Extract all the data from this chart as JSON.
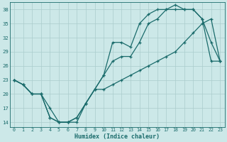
{
  "xlabel": "Humidex (Indice chaleur)",
  "ylabel": "",
  "bg_color": "#cce8e8",
  "grid_color": "#aacccc",
  "line_color": "#1a6b6b",
  "xlim": [
    -0.5,
    23.5
  ],
  "ylim": [
    13.0,
    39.5
  ],
  "xticks": [
    0,
    1,
    2,
    3,
    4,
    5,
    6,
    7,
    8,
    9,
    10,
    11,
    12,
    13,
    14,
    15,
    16,
    17,
    18,
    19,
    20,
    21,
    22,
    23
  ],
  "yticks": [
    14,
    17,
    20,
    23,
    26,
    29,
    32,
    35,
    38
  ],
  "series1_x": [
    0,
    1,
    2,
    3,
    4,
    5,
    6,
    7,
    8,
    9,
    10,
    11,
    12,
    13,
    14,
    15,
    16,
    17,
    18,
    19,
    20,
    21,
    22,
    23
  ],
  "series1_y": [
    23,
    22,
    20,
    20,
    15,
    14,
    14,
    15,
    18,
    21,
    24,
    27,
    28,
    28,
    31,
    35,
    36,
    38,
    39,
    38,
    38,
    36,
    27,
    27
  ],
  "series2_x": [
    0,
    1,
    2,
    3,
    4,
    5,
    6,
    7,
    8,
    9,
    10,
    11,
    12,
    13,
    14,
    15,
    16,
    17,
    18,
    19,
    20,
    21,
    22,
    23
  ],
  "series2_y": [
    23,
    22,
    20,
    20,
    15,
    14,
    14,
    15,
    18,
    21,
    24,
    31,
    31,
    30,
    35,
    37,
    38,
    38,
    38,
    38,
    38,
    36,
    31,
    27
  ],
  "series3_x": [
    0,
    1,
    2,
    3,
    4,
    5,
    6,
    7,
    8,
    9,
    10,
    11,
    12,
    13,
    14,
    15,
    16,
    17,
    18,
    19,
    20,
    21,
    22,
    23
  ],
  "series3_y": [
    23,
    22,
    20,
    20,
    17,
    14,
    14,
    14,
    18,
    21,
    21,
    22,
    23,
    24,
    25,
    26,
    27,
    28,
    29,
    31,
    33,
    35,
    36,
    27
  ]
}
